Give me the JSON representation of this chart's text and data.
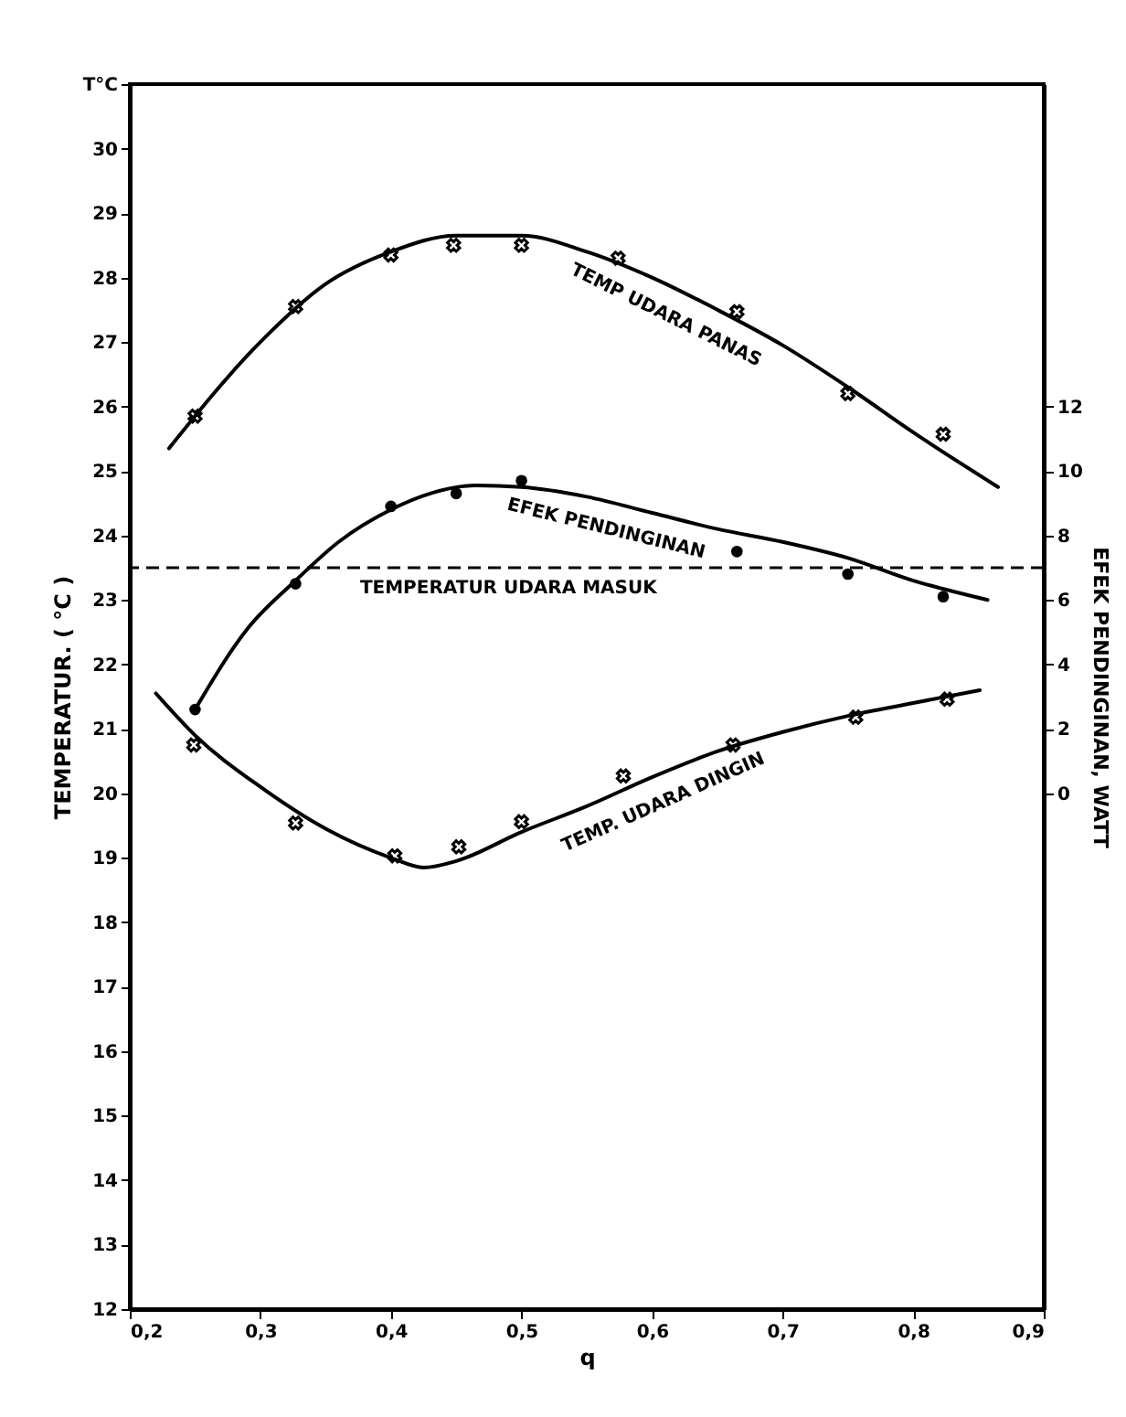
{
  "chart_data": {
    "type": "line",
    "xlabel": "q",
    "ylabel": "TEMPERATUR. ( °C )",
    "y2label": "EFEK PENDINGINAN, WATT",
    "xlim": [
      0.2,
      0.9
    ],
    "xticks": [
      {
        "value": 0.2,
        "label": "0,2"
      },
      {
        "value": 0.3,
        "label": "0,3"
      },
      {
        "value": 0.4,
        "label": "0,4"
      },
      {
        "value": 0.5,
        "label": "0,5"
      },
      {
        "value": 0.6,
        "label": "0,6"
      },
      {
        "value": 0.7,
        "label": "0,7"
      },
      {
        "value": 0.8,
        "label": "0,8"
      },
      {
        "value": 0.9,
        "label": "0,9"
      }
    ],
    "ylim": [
      12,
      31
    ],
    "yticks": [
      12,
      13,
      14,
      15,
      16,
      17,
      18,
      19,
      20,
      21,
      22,
      23,
      24,
      25,
      26,
      27,
      28,
      29,
      30,
      {
        "value": 31,
        "label": "T°C"
      }
    ],
    "y2lim": [
      -16,
      22
    ],
    "y2ticks": [
      0,
      2,
      4,
      6,
      8,
      10,
      12
    ],
    "grid": false,
    "series": [
      {
        "type": "scatter",
        "marker": "cross",
        "color": "#000000",
        "x": [
          0.25,
          0.327,
          0.4,
          0.448,
          0.5,
          0.574,
          0.665,
          0.75,
          0.823
        ],
        "values": [
          25.85,
          27.55,
          28.35,
          28.5,
          28.5,
          28.3,
          27.47,
          26.2,
          25.57
        ]
      },
      {
        "type": "line",
        "marker": "none",
        "color": "#000000",
        "x": [
          0.23,
          0.3,
          0.35,
          0.4,
          0.45,
          0.5,
          0.55,
          0.6,
          0.65,
          0.7,
          0.75,
          0.8,
          0.865
        ],
        "values": [
          25.35,
          27.0,
          27.9,
          28.4,
          28.65,
          28.65,
          28.4,
          28.0,
          27.5,
          26.95,
          26.3,
          25.6,
          24.75
        ]
      },
      {
        "type": "scatter",
        "marker": "circle",
        "axis": "y2",
        "color": "#000000",
        "x": [
          0.25,
          0.327,
          0.4,
          0.45,
          0.5,
          0.665,
          0.75,
          0.823
        ],
        "values": [
          2.6,
          6.5,
          8.9,
          9.3,
          9.7,
          7.5,
          6.8,
          6.1
        ]
      },
      {
        "type": "line",
        "marker": "none",
        "axis": "y2",
        "color": "#000000",
        "x": [
          0.25,
          0.29,
          0.327,
          0.36,
          0.4,
          0.43,
          0.465,
          0.5,
          0.55,
          0.6,
          0.65,
          0.7,
          0.75,
          0.8,
          0.857
        ],
        "values": [
          2.6,
          5.1,
          6.6,
          7.8,
          8.8,
          9.3,
          9.55,
          9.5,
          9.2,
          8.7,
          8.2,
          7.8,
          7.3,
          6.6,
          6.0
        ]
      },
      {
        "type": "scatter",
        "marker": "cross",
        "color": "#000000",
        "x": [
          0.249,
          0.327,
          0.403,
          0.452,
          0.5,
          0.578,
          0.662,
          0.756,
          0.826
        ],
        "values": [
          20.75,
          19.54,
          19.03,
          19.17,
          19.56,
          20.27,
          20.75,
          21.18,
          21.46
        ]
      },
      {
        "type": "line",
        "marker": "none",
        "color": "#000000",
        "x": [
          0.22,
          0.25,
          0.3,
          0.35,
          0.4,
          0.425,
          0.45,
          0.5,
          0.55,
          0.6,
          0.65,
          0.7,
          0.75,
          0.8,
          0.851
        ],
        "values": [
          21.55,
          20.9,
          20.1,
          19.45,
          19.0,
          18.85,
          18.95,
          19.4,
          19.8,
          20.25,
          20.65,
          20.95,
          21.2,
          21.4,
          21.6
        ]
      }
    ],
    "ref_lines": [
      {
        "axis": "y",
        "value": 23.5,
        "label": "TEMPERATUR UDARA MASUK",
        "line_style": "dashed"
      }
    ],
    "annotations": [
      {
        "text": "TEMP UDARA PANAS",
        "x": 0.62,
        "y": 27.8
      },
      {
        "text": "EFEK PENDINGINAN",
        "x": 0.57,
        "y": 24.52
      },
      {
        "text": "TEMP. UDARA DINGIN",
        "x": 0.6,
        "y": 20.25
      }
    ]
  }
}
